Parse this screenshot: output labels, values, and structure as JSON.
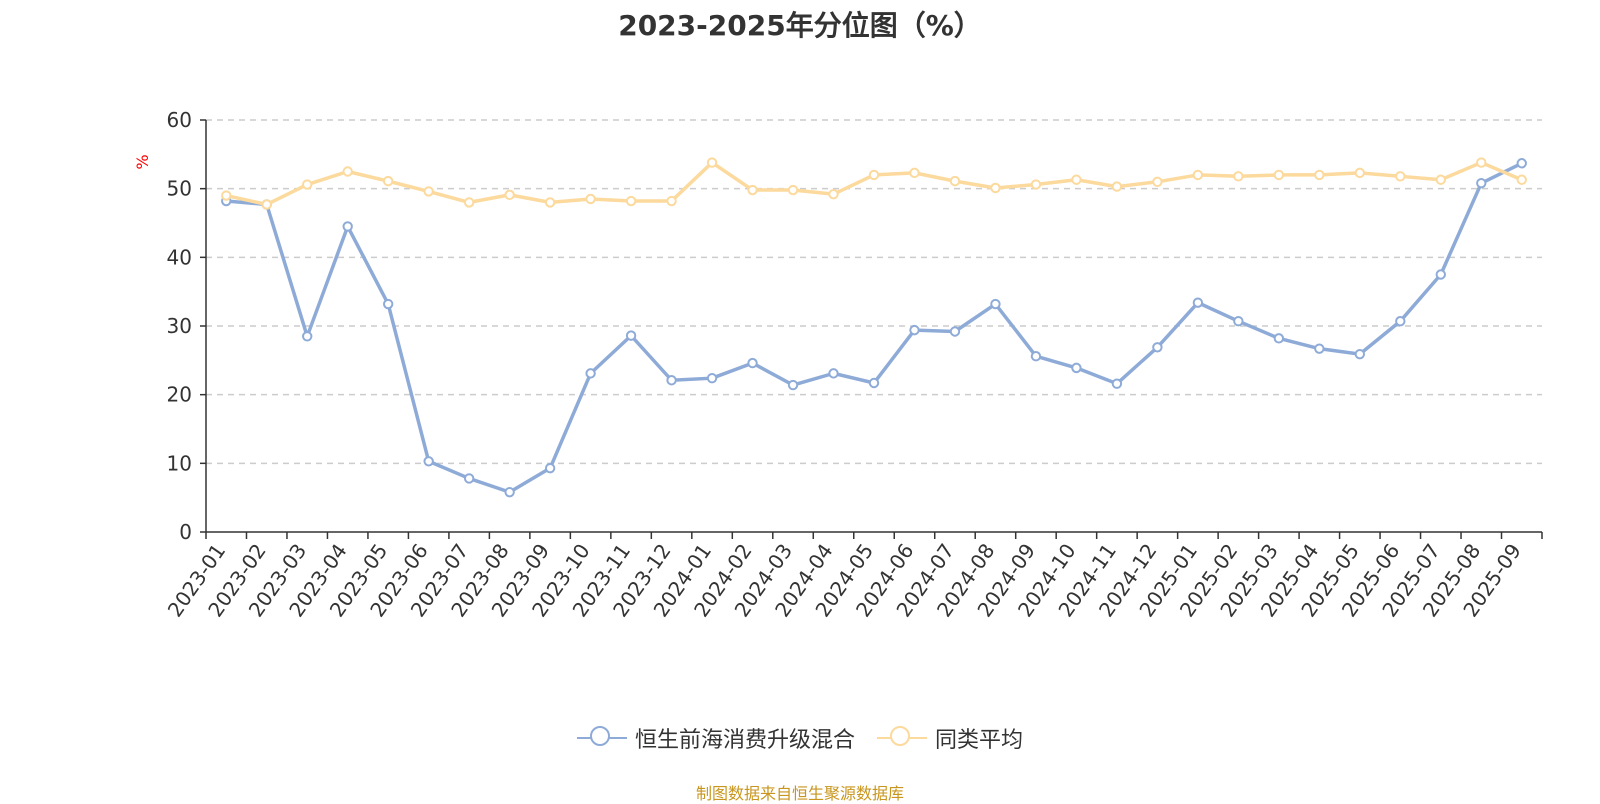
{
  "chart_data": {
    "type": "line",
    "title": "2023-2025年分位图（%）",
    "ylabel": "%",
    "xlabel": "",
    "ylim": [
      0,
      60
    ],
    "yticks": [
      0,
      10,
      20,
      30,
      40,
      50,
      60
    ],
    "grid": true,
    "legend_position": "bottom",
    "categories": [
      "2023-01",
      "2023-02",
      "2023-03",
      "2023-04",
      "2023-05",
      "2023-06",
      "2023-07",
      "2023-08",
      "2023-09",
      "2023-10",
      "2023-11",
      "2023-12",
      "2024-01",
      "2024-02",
      "2024-03",
      "2024-04",
      "2024-05",
      "2024-06",
      "2024-07",
      "2024-08",
      "2024-09",
      "2024-10",
      "2024-11",
      "2024-12",
      "2025-01",
      "2025-02",
      "2025-03",
      "2025-04",
      "2025-05",
      "2025-06",
      "2025-07",
      "2025-08",
      "2025-09"
    ],
    "series": [
      {
        "name": "恒生前海消费升级混合",
        "color": "#8eabd8",
        "values": [
          48.2,
          47.7,
          28.5,
          44.5,
          33.2,
          10.3,
          7.8,
          5.8,
          9.3,
          23.1,
          28.6,
          22.1,
          22.4,
          24.6,
          21.4,
          23.1,
          21.7,
          29.4,
          29.2,
          33.2,
          25.6,
          23.9,
          21.6,
          26.9,
          33.4,
          30.7,
          28.2,
          26.7,
          25.9,
          30.7,
          37.5,
          50.8,
          53.7
        ]
      },
      {
        "name": "同类平均",
        "color": "#fcd99c",
        "values": [
          49.0,
          47.7,
          50.6,
          52.5,
          51.1,
          49.6,
          48.0,
          49.1,
          48.0,
          48.5,
          48.2,
          48.2,
          53.8,
          49.8,
          49.8,
          49.2,
          52.0,
          52.3,
          51.1,
          50.1,
          50.6,
          51.3,
          50.3,
          51.0,
          52.0,
          51.8,
          52.0,
          52.0,
          52.3,
          51.8,
          51.3,
          53.8,
          51.3
        ]
      }
    ]
  },
  "footer": {
    "source_note": "制图数据来自恒生聚源数据库"
  }
}
